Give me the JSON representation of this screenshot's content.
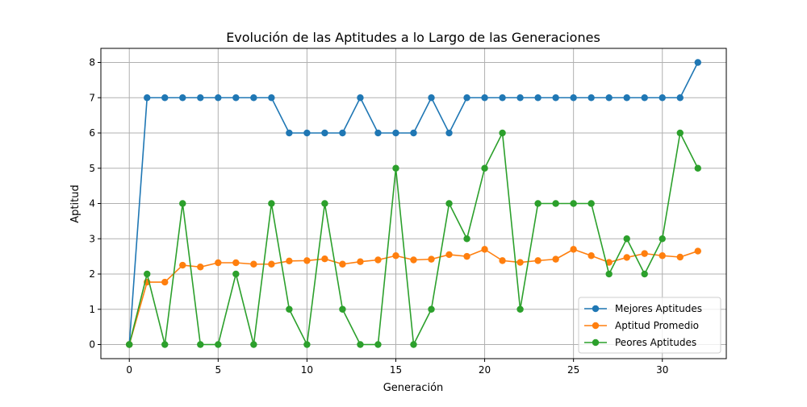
{
  "chart_data": {
    "type": "line",
    "title": "Evolución de las Aptitudes a lo Largo de las Generaciones",
    "xlabel": "Generación",
    "ylabel": "Aptitud",
    "xlim": [
      -1.6,
      33.6
    ],
    "ylim": [
      -0.4,
      8.4
    ],
    "xticks": [
      0,
      5,
      10,
      15,
      20,
      25,
      30
    ],
    "yticks": [
      0,
      1,
      2,
      3,
      4,
      5,
      6,
      7,
      8
    ],
    "grid": true,
    "legend_position": "lower-right",
    "x": [
      0,
      1,
      2,
      3,
      4,
      5,
      6,
      7,
      8,
      9,
      10,
      11,
      12,
      13,
      14,
      15,
      16,
      17,
      18,
      19,
      20,
      21,
      22,
      23,
      24,
      25,
      26,
      27,
      28,
      29,
      30,
      31,
      32
    ],
    "series": [
      {
        "name": "Mejores Aptitudes",
        "color": "#1f77b4",
        "values": [
          0,
          7,
          7,
          7,
          7,
          7,
          7,
          7,
          7,
          6,
          6,
          6,
          6,
          7,
          6,
          6,
          6,
          7,
          6,
          7,
          7,
          7,
          7,
          7,
          7,
          7,
          7,
          7,
          7,
          7,
          7,
          7,
          8
        ]
      },
      {
        "name": "Aptitud Promedio",
        "color": "#ff7f0e",
        "values": [
          0,
          1.77,
          1.77,
          2.25,
          2.2,
          2.32,
          2.32,
          2.28,
          2.28,
          2.37,
          2.38,
          2.43,
          2.28,
          2.35,
          2.4,
          2.52,
          2.4,
          2.42,
          2.55,
          2.5,
          2.7,
          2.38,
          2.33,
          2.38,
          2.42,
          2.7,
          2.52,
          2.33,
          2.47,
          2.58,
          2.52,
          2.48,
          2.65
        ]
      },
      {
        "name": "Peores Aptitudes",
        "color": "#2ca02c",
        "values": [
          0,
          2,
          0,
          4,
          0,
          0,
          2,
          0,
          4,
          1,
          0,
          4,
          1,
          0,
          0,
          5,
          0,
          1,
          4,
          3,
          5,
          6,
          1,
          4,
          4,
          4,
          4,
          2,
          3,
          2,
          3,
          6,
          5
        ]
      }
    ]
  }
}
